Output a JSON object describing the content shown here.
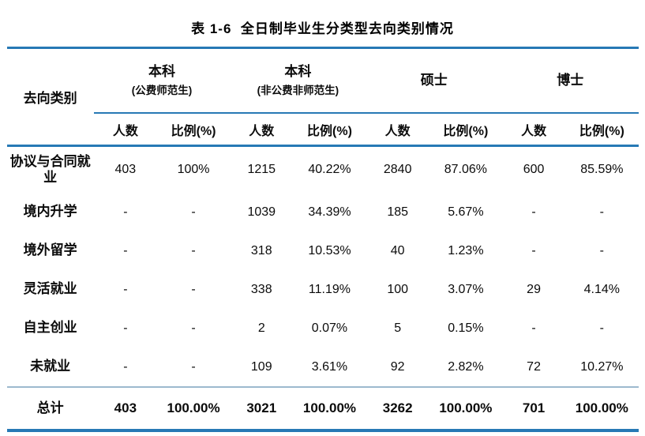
{
  "title": "表 1-6  全日制毕业生分类型去向类别情况",
  "table": {
    "row_header": "去向类别",
    "groups": [
      {
        "line1": "本科",
        "line2": "(公费师范生)"
      },
      {
        "line1": "本科",
        "line2": "(非公费非师范生)"
      },
      {
        "line1": "硕士",
        "line2": ""
      },
      {
        "line1": "博士",
        "line2": ""
      }
    ],
    "subheaders": {
      "count": "人数",
      "ratio": "比例(%)"
    },
    "rows": [
      {
        "label": "协议与合同就业",
        "values": [
          "403",
          "100%",
          "1215",
          "40.22%",
          "2840",
          "87.06%",
          "600",
          "85.59%"
        ]
      },
      {
        "label": "境内升学",
        "values": [
          "-",
          "-",
          "1039",
          "34.39%",
          "185",
          "5.67%",
          "-",
          "-"
        ]
      },
      {
        "label": "境外留学",
        "values": [
          "-",
          "-",
          "318",
          "10.53%",
          "40",
          "1.23%",
          "-",
          "-"
        ]
      },
      {
        "label": "灵活就业",
        "values": [
          "-",
          "-",
          "338",
          "11.19%",
          "100",
          "3.07%",
          "29",
          "4.14%"
        ]
      },
      {
        "label": "自主创业",
        "values": [
          "-",
          "-",
          "2",
          "0.07%",
          "5",
          "0.15%",
          "-",
          "-"
        ]
      },
      {
        "label": "未就业",
        "values": [
          "-",
          "-",
          "109",
          "3.61%",
          "92",
          "2.82%",
          "72",
          "10.27%"
        ]
      }
    ],
    "total_row": {
      "label": "总计",
      "values": [
        "403",
        "100.00%",
        "3021",
        "100.00%",
        "3262",
        "100.00%",
        "701",
        "100.00%"
      ]
    }
  },
  "colors": {
    "rule_blue": "#2779b5",
    "rule_light": "#9db9ce",
    "text": "#0b0b0b",
    "background": "#ffffff"
  }
}
